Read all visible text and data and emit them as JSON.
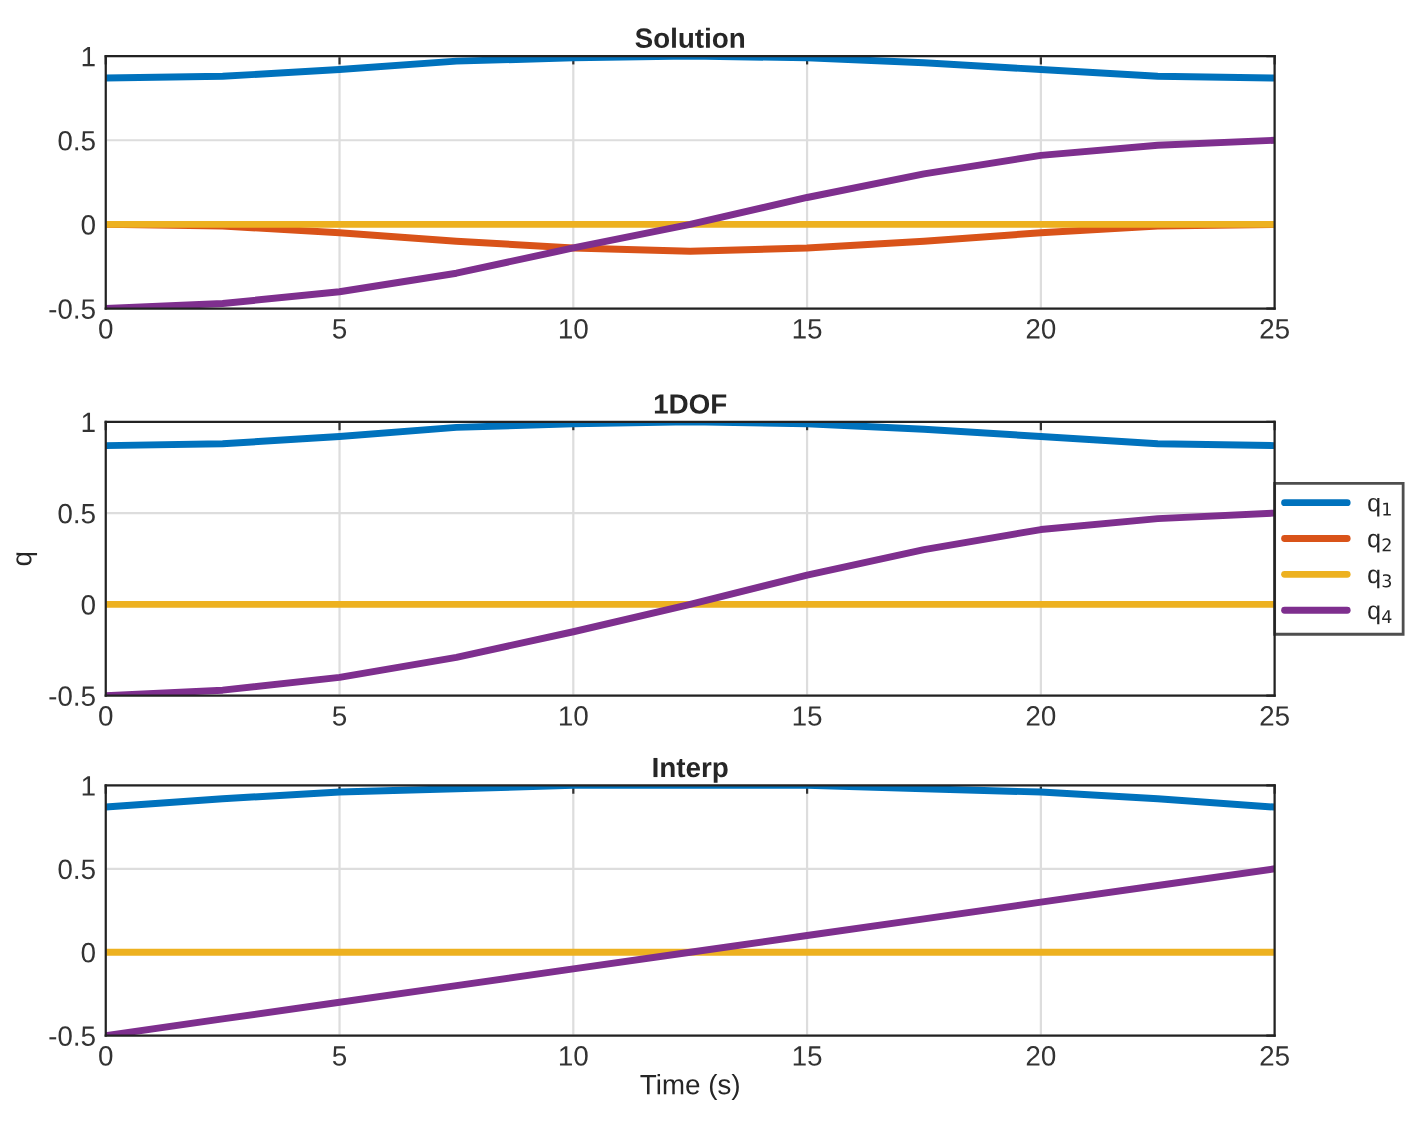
{
  "chart_data": [
    {
      "type": "line",
      "title": "Solution",
      "x": [
        0,
        2.5,
        5,
        7.5,
        10,
        12.5,
        15,
        17.5,
        20,
        22.5,
        25
      ],
      "xlim": [
        0,
        25
      ],
      "xticks": [
        0,
        5,
        10,
        15,
        20,
        25
      ],
      "ylim": [
        -0.5,
        1
      ],
      "yticks": [
        -0.5,
        0,
        0.5,
        1
      ],
      "grid": true,
      "legend": false,
      "series": [
        {
          "color": "#0072bd",
          "values": [
            0.87,
            0.88,
            0.92,
            0.97,
            0.99,
            1.0,
            0.99,
            0.96,
            0.92,
            0.88,
            0.87
          ]
        },
        {
          "color": "#d95319",
          "values": [
            0,
            -0.01,
            -0.05,
            -0.1,
            -0.14,
            -0.16,
            -0.14,
            -0.1,
            -0.05,
            -0.01,
            0
          ]
        },
        {
          "color": "#edb120",
          "values": [
            0,
            0,
            0,
            0,
            0,
            0,
            0,
            0,
            0,
            0,
            0
          ]
        },
        {
          "color": "#7e2f8e",
          "values": [
            -0.5,
            -0.47,
            -0.4,
            -0.29,
            -0.14,
            0,
            0.16,
            0.3,
            0.41,
            0.47,
            0.5
          ]
        }
      ]
    },
    {
      "type": "line",
      "title": "1DOF",
      "ylabel": "q",
      "x": [
        0,
        2.5,
        5,
        7.5,
        10,
        12.5,
        15,
        17.5,
        20,
        22.5,
        25
      ],
      "xlim": [
        0,
        25
      ],
      "xticks": [
        0,
        5,
        10,
        15,
        20,
        25
      ],
      "ylim": [
        -0.5,
        1
      ],
      "yticks": [
        -0.5,
        0,
        0.5,
        1
      ],
      "grid": true,
      "legend": "right",
      "series": [
        {
          "name": "q$_{1}$",
          "color": "#0072bd",
          "values": [
            0.87,
            0.88,
            0.92,
            0.97,
            0.99,
            1.0,
            0.99,
            0.96,
            0.92,
            0.88,
            0.87
          ]
        },
        {
          "name": "q$_{2}$",
          "color": "#d95319",
          "values": [
            null,
            null,
            null,
            null,
            null,
            null,
            null,
            null,
            null,
            null,
            null
          ]
        },
        {
          "name": "q$_{3}$",
          "color": "#edb120",
          "values": [
            0,
            0,
            0,
            0,
            0,
            0,
            0,
            0,
            0,
            0,
            0
          ]
        },
        {
          "name": "q$_{4}$",
          "color": "#7e2f8e",
          "values": [
            -0.5,
            -0.47,
            -0.4,
            -0.29,
            -0.15,
            0,
            0.16,
            0.3,
            0.41,
            0.47,
            0.5
          ]
        }
      ]
    },
    {
      "type": "line",
      "title": "Interp",
      "xlabel": "Time (s)",
      "x": [
        0,
        2.5,
        5,
        7.5,
        10,
        12.5,
        15,
        17.5,
        20,
        22.5,
        25
      ],
      "xlim": [
        0,
        25
      ],
      "xticks": [
        0,
        5,
        10,
        15,
        20,
        25
      ],
      "ylim": [
        -0.5,
        1
      ],
      "yticks": [
        -0.5,
        0,
        0.5,
        1
      ],
      "grid": true,
      "legend": false,
      "series": [
        {
          "color": "#0072bd",
          "values": [
            0.87,
            0.92,
            0.96,
            0.98,
            1.0,
            1.0,
            1.0,
            0.98,
            0.96,
            0.92,
            0.87
          ]
        },
        {
          "color": "#d95319",
          "values": [
            null,
            null,
            null,
            null,
            null,
            null,
            null,
            null,
            null,
            null,
            null
          ]
        },
        {
          "color": "#edb120",
          "values": [
            0,
            0,
            0,
            0,
            0,
            0,
            0,
            0,
            0,
            0,
            0
          ]
        },
        {
          "color": "#7e2f8e",
          "values": [
            -0.5,
            -0.4,
            -0.3,
            -0.2,
            -0.1,
            0,
            0.1,
            0.2,
            0.3,
            0.4,
            0.5
          ]
        }
      ]
    }
  ]
}
